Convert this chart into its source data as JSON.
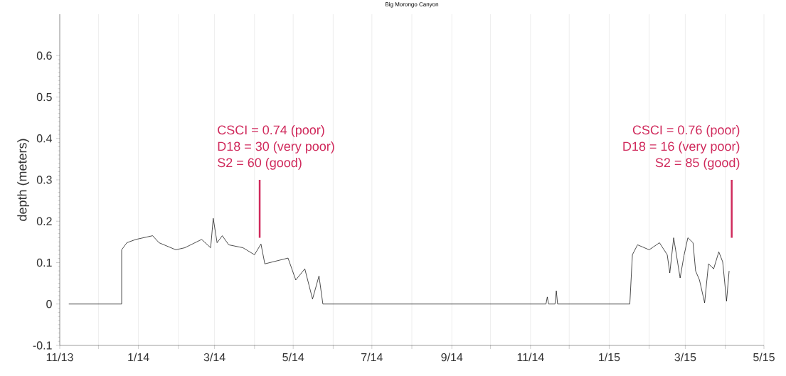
{
  "chart_data": {
    "type": "line",
    "title": "Big Morongo Canyon",
    "ylabel": "depth (meters)",
    "x": [
      "2013-11-08",
      "2013-12-19",
      "2013-12-19",
      "2013-12-23",
      "2013-12-30",
      "2014-01-12",
      "2014-01-17",
      "2014-01-30",
      "2014-02-06",
      "2014-02-19",
      "2014-02-26",
      "2014-02-28",
      "2014-03-03",
      "2014-03-07",
      "2014-03-12",
      "2014-03-23",
      "2014-04-01",
      "2014-04-06",
      "2014-04-09",
      "2014-04-27",
      "2014-05-03",
      "2014-05-10",
      "2014-05-16",
      "2014-05-21",
      "2014-05-24",
      "2014-11-13",
      "2014-11-14",
      "2014-11-15",
      "2014-11-20",
      "2014-11-21",
      "2014-11-22",
      "2015-01-17",
      "2015-01-19",
      "2015-01-23",
      "2015-02-01",
      "2015-02-09",
      "2015-02-15",
      "2015-02-17",
      "2015-02-20",
      "2015-02-25",
      "2015-02-28",
      "2015-03-03",
      "2015-03-07",
      "2015-03-09",
      "2015-03-12",
      "2015-03-16",
      "2015-03-19",
      "2015-03-23",
      "2015-03-27",
      "2015-03-30",
      "2015-04-02",
      "2015-04-04"
    ],
    "series": [
      {
        "color": "#000000",
        "values": [
          0,
          0,
          0.131,
          0.148,
          0.156,
          0.165,
          0.148,
          0.131,
          0.136,
          0.156,
          0.136,
          0.207,
          0.148,
          0.165,
          0.143,
          0.136,
          0.119,
          0.145,
          0.097,
          0.111,
          0.058,
          0.085,
          0.012,
          0.068,
          0,
          0,
          0.017,
          0,
          0,
          0.032,
          0,
          0,
          0.119,
          0.143,
          0.131,
          0.148,
          0.119,
          0.075,
          0.16,
          0.063,
          0.117,
          0.16,
          0.148,
          0.08,
          0.058,
          0.003,
          0.097,
          0.085,
          0.126,
          0.102,
          0.007,
          0.08
        ]
      }
    ],
    "xlim": [
      "2013-11-01",
      "2015-05-01"
    ],
    "xticks": [
      {
        "value": "2013-11",
        "label": "11/13"
      },
      {
        "value": "2013-12",
        "label": null
      },
      {
        "value": "2014-01",
        "label": "1/14"
      },
      {
        "value": "2014-02",
        "label": null
      },
      {
        "value": "2014-03",
        "label": "3/14"
      },
      {
        "value": "2014-04",
        "label": null
      },
      {
        "value": "2014-05",
        "label": "5/14"
      },
      {
        "value": "2014-06",
        "label": null
      },
      {
        "value": "2014-07",
        "label": "7/14"
      },
      {
        "value": "2014-08",
        "label": null
      },
      {
        "value": "2014-09",
        "label": "9/14"
      },
      {
        "value": "2014-10",
        "label": null
      },
      {
        "value": "2014-11",
        "label": "11/14"
      },
      {
        "value": "2014-12",
        "label": null
      },
      {
        "value": "2015-01",
        "label": "1/15"
      },
      {
        "value": "2015-02",
        "label": null
      },
      {
        "value": "2015-03",
        "label": "3/15"
      },
      {
        "value": "2015-04",
        "label": null
      },
      {
        "value": "2015-05",
        "label": "5/15"
      }
    ],
    "ylim": [
      -0.1,
      0.7
    ],
    "yticks": [
      -0.1,
      0,
      0.1,
      0.2,
      0.3,
      0.4,
      0.5,
      0.6
    ],
    "grid": "x",
    "marker": "none",
    "line_style": "solid",
    "ref_lines": [
      {
        "axis": "x",
        "value": "2014-04-05",
        "color": "#d02a5c"
      },
      {
        "axis": "x",
        "value": "2015-04-06",
        "color": "#d02a5c"
      }
    ],
    "annotations": [
      "CSCI = 0.74 (poor)",
      "D18 = 30 (very poor)",
      "S2 = 60 (good)",
      "CSCI = 0.76 (poor)",
      "D18 = 16 (very poor)",
      "S2 = 85 (good)"
    ]
  }
}
